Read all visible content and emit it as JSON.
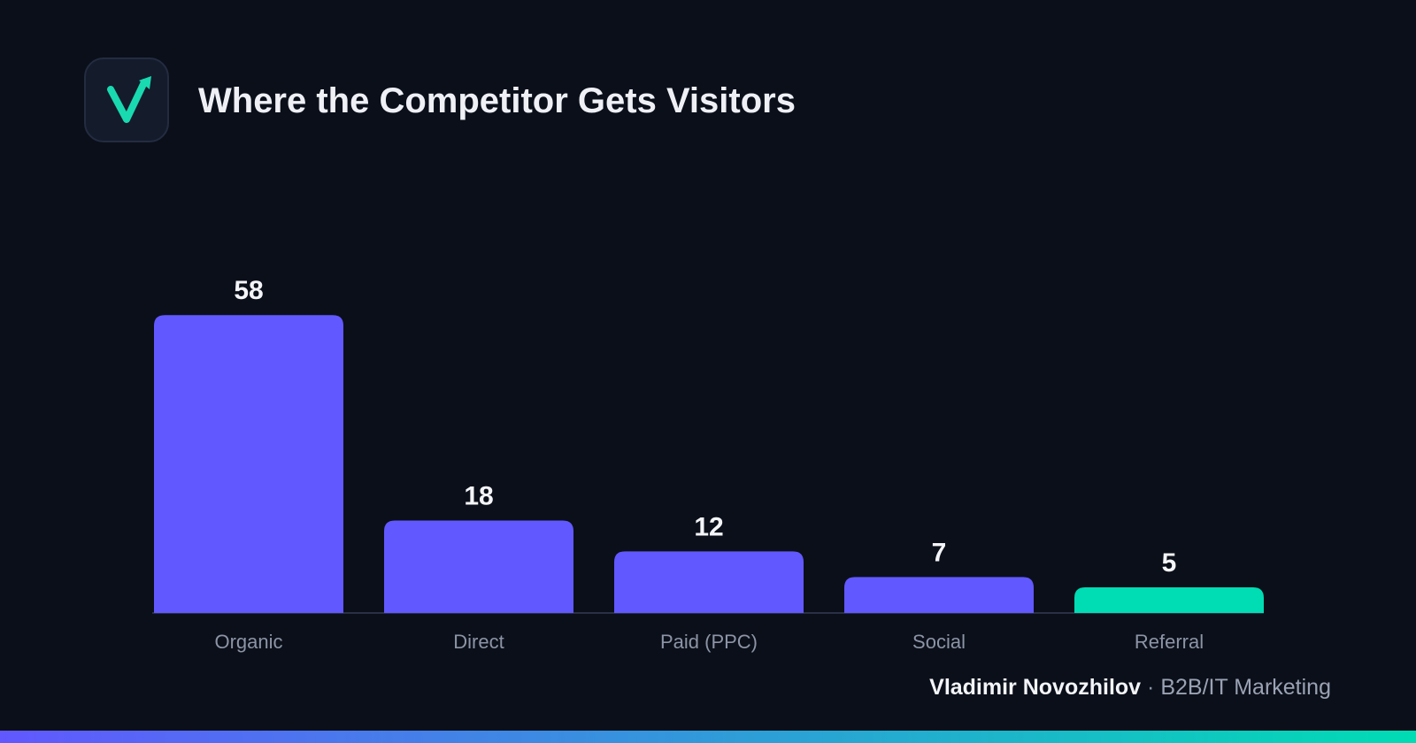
{
  "header": {
    "title": "Where the Competitor Gets Visitors",
    "logo_icon": "checkmark-arrow-icon"
  },
  "colors": {
    "background": "#0b0f19",
    "primary_bar": "#6158ff",
    "highlight_bar": "#00dcb4",
    "accent": "#19d9b0"
  },
  "chart_data": {
    "type": "bar",
    "categories": [
      "Organic",
      "Direct",
      "Paid (PPC)",
      "Social",
      "Referral"
    ],
    "values": [
      58,
      18,
      12,
      7,
      5
    ],
    "highlight_index": 4,
    "ylim": [
      0,
      62
    ],
    "grid": false,
    "legend": "none",
    "title": "",
    "xlabel": "",
    "ylabel": ""
  },
  "footer": {
    "author": "Vladimir Novozhilov",
    "separator": "·",
    "role": "B2B/IT Marketing"
  }
}
